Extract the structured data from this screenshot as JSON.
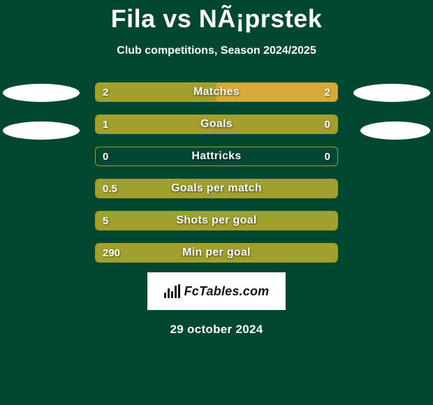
{
  "title": "Fila vs NÃ¡prstek",
  "subtitle": "Club competitions, Season 2024/2025",
  "colors": {
    "background": "#024831",
    "olive": "#a1a02e",
    "gold": "#d7a93a",
    "text": "#ffffff"
  },
  "side_ovals": {
    "left_count": 2,
    "right_count": 2
  },
  "bars": [
    {
      "label": "Matches",
      "left_val": "2",
      "right_val": "2",
      "left_num": 2,
      "right_num": 2,
      "left_color": "#a1a02e",
      "right_color": "#d7a93a",
      "border_color": "#a1a02e"
    },
    {
      "label": "Goals",
      "left_val": "1",
      "right_val": "0",
      "left_num": 1,
      "right_num": 0,
      "left_color": "#a1a02e",
      "right_color": "#d7a93a",
      "border_color": "#a1a02e"
    },
    {
      "label": "Hattricks",
      "left_val": "0",
      "right_val": "0",
      "left_num": 0,
      "right_num": 0,
      "left_color": "#a1a02e",
      "right_color": "#d7a93a",
      "border_color": "#a1a02e"
    },
    {
      "label": "Goals per match",
      "left_val": "0.5",
      "right_val": "",
      "left_num": 0.5,
      "right_num": 0,
      "left_color": "#a1a02e",
      "right_color": "#d7a93a",
      "border_color": "#a1a02e"
    },
    {
      "label": "Shots per goal",
      "left_val": "5",
      "right_val": "",
      "left_num": 5,
      "right_num": 0,
      "left_color": "#a1a02e",
      "right_color": "#d7a93a",
      "border_color": "#a1a02e"
    },
    {
      "label": "Min per goal",
      "left_val": "290",
      "right_val": "",
      "left_num": 290,
      "right_num": 0,
      "left_color": "#a1a02e",
      "right_color": "#d7a93a",
      "border_color": "#a1a02e"
    }
  ],
  "logo_text": "FcTables.com",
  "date": "29 october 2024"
}
